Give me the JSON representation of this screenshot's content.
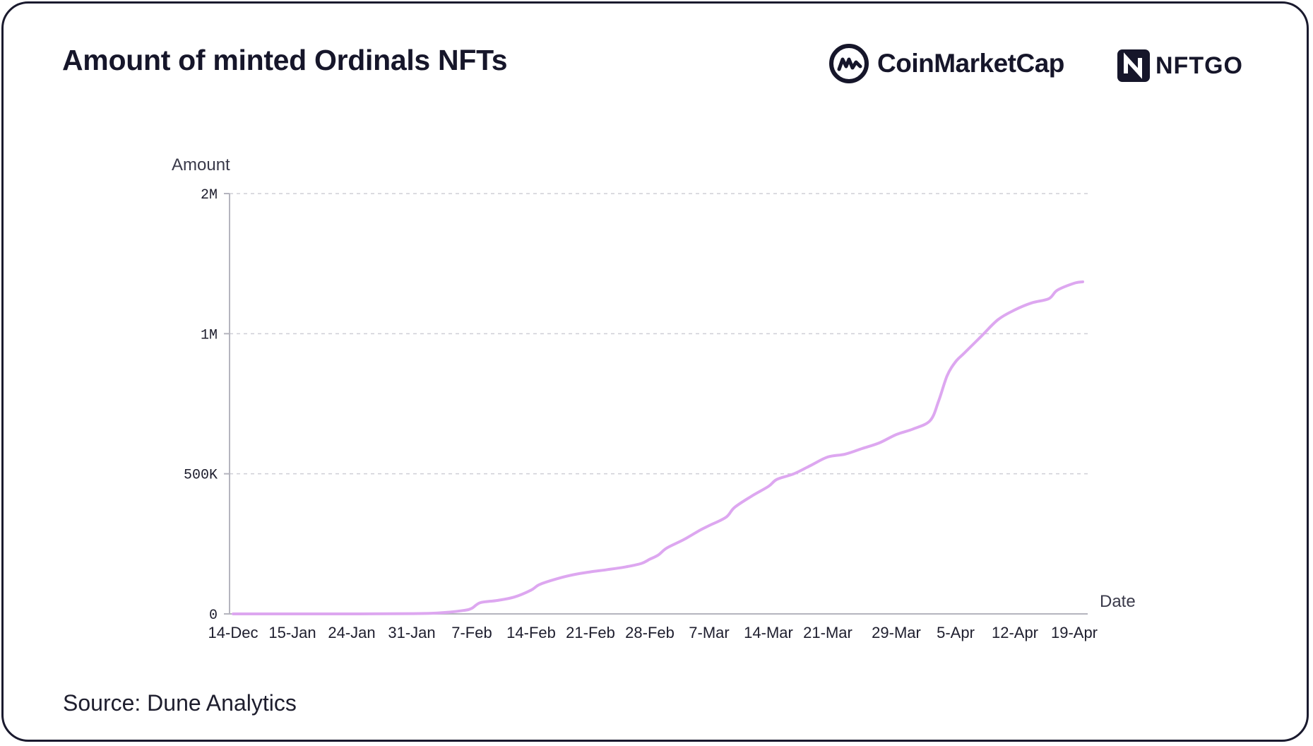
{
  "header": {
    "title": "Amount of minted Ordinals NFTs",
    "brand_primary": "CoinMarketCap",
    "brand_secondary": "NFTGO"
  },
  "footer": {
    "source": "Source: Dune Analytics"
  },
  "colors": {
    "line": "#dda7f0",
    "grid": "#cfcfd6",
    "axis": "#b5b5be",
    "text": "#1e1e2e"
  },
  "chart_data": {
    "type": "line",
    "title": "Amount of minted Ordinals NFTs",
    "xlabel": "Date",
    "ylabel": "Amount",
    "ylim": [
      0,
      1500000
    ],
    "y_ticks": [
      {
        "value": 0,
        "label": "0"
      },
      {
        "value": 500000,
        "label": "500K"
      },
      {
        "value": 1000000,
        "label": "1M"
      },
      {
        "value": 1500000,
        "label": "2M"
      }
    ],
    "x_tick_labels": [
      "14-Dec",
      "15-Jan",
      "24-Jan",
      "31-Jan",
      "7-Feb",
      "14-Feb",
      "21-Feb",
      "28-Feb",
      "7-Mar",
      "14-Mar",
      "21-Mar",
      "29-Mar",
      "5-Apr",
      "12-Apr",
      "19-Apr"
    ],
    "grid": "horizontal dashed",
    "series": [
      {
        "points": [
          {
            "x": "14-Dec",
            "y": 0
          },
          {
            "x": "15-Jan",
            "y": 0
          },
          {
            "x": "24-Jan",
            "y": 0
          },
          {
            "x": "31-Jan",
            "y": 1000
          },
          {
            "x": "3-Feb",
            "y": 3000
          },
          {
            "x": "6-Feb",
            "y": 12000
          },
          {
            "x": "7-Feb",
            "y": 20000
          },
          {
            "x": "8-Feb",
            "y": 40000
          },
          {
            "x": "10-Feb",
            "y": 48000
          },
          {
            "x": "12-Feb",
            "y": 60000
          },
          {
            "x": "14-Feb",
            "y": 85000
          },
          {
            "x": "15-Feb",
            "y": 105000
          },
          {
            "x": "17-Feb",
            "y": 125000
          },
          {
            "x": "19-Feb",
            "y": 140000
          },
          {
            "x": "21-Feb",
            "y": 150000
          },
          {
            "x": "23-Feb",
            "y": 158000
          },
          {
            "x": "25-Feb",
            "y": 167000
          },
          {
            "x": "27-Feb",
            "y": 180000
          },
          {
            "x": "28-Feb",
            "y": 195000
          },
          {
            "x": "1-Mar",
            "y": 210000
          },
          {
            "x": "2-Mar",
            "y": 235000
          },
          {
            "x": "4-Mar",
            "y": 265000
          },
          {
            "x": "6-Mar",
            "y": 300000
          },
          {
            "x": "7-Mar",
            "y": 315000
          },
          {
            "x": "9-Mar",
            "y": 345000
          },
          {
            "x": "10-Mar",
            "y": 380000
          },
          {
            "x": "12-Mar",
            "y": 420000
          },
          {
            "x": "14-Mar",
            "y": 455000
          },
          {
            "x": "15-Mar",
            "y": 480000
          },
          {
            "x": "17-Mar",
            "y": 500000
          },
          {
            "x": "19-Mar",
            "y": 530000
          },
          {
            "x": "21-Mar",
            "y": 560000
          },
          {
            "x": "23-Mar",
            "y": 570000
          },
          {
            "x": "25-Mar",
            "y": 590000
          },
          {
            "x": "27-Mar",
            "y": 610000
          },
          {
            "x": "29-Mar",
            "y": 640000
          },
          {
            "x": "31-Mar",
            "y": 660000
          },
          {
            "x": "2-Apr",
            "y": 690000
          },
          {
            "x": "3-Apr",
            "y": 760000
          },
          {
            "x": "4-Apr",
            "y": 850000
          },
          {
            "x": "5-Apr",
            "y": 900000
          },
          {
            "x": "6-Apr",
            "y": 930000
          },
          {
            "x": "8-Apr",
            "y": 990000
          },
          {
            "x": "10-Apr",
            "y": 1050000
          },
          {
            "x": "12-Apr",
            "y": 1085000
          },
          {
            "x": "14-Apr",
            "y": 1110000
          },
          {
            "x": "16-Apr",
            "y": 1125000
          },
          {
            "x": "17-Apr",
            "y": 1155000
          },
          {
            "x": "19-Apr",
            "y": 1180000
          },
          {
            "x": "20-Apr",
            "y": 1185000
          }
        ]
      }
    ]
  }
}
